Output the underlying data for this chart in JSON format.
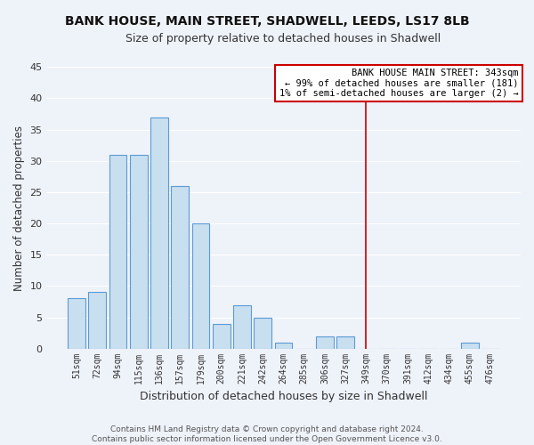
{
  "title": "BANK HOUSE, MAIN STREET, SHADWELL, LEEDS, LS17 8LB",
  "subtitle": "Size of property relative to detached houses in Shadwell",
  "xlabel": "Distribution of detached houses by size in Shadwell",
  "ylabel": "Number of detached properties",
  "bar_labels": [
    "51sqm",
    "72sqm",
    "94sqm",
    "115sqm",
    "136sqm",
    "157sqm",
    "179sqm",
    "200sqm",
    "221sqm",
    "242sqm",
    "264sqm",
    "285sqm",
    "306sqm",
    "327sqm",
    "349sqm",
    "370sqm",
    "391sqm",
    "412sqm",
    "434sqm",
    "455sqm",
    "476sqm"
  ],
  "bar_heights": [
    8,
    9,
    31,
    31,
    37,
    26,
    20,
    4,
    7,
    5,
    1,
    0,
    2,
    2,
    0,
    0,
    0,
    0,
    0,
    1,
    0
  ],
  "bar_color": "#c8dff0",
  "bar_edge_color": "#5b9bd5",
  "ylim": [
    0,
    45
  ],
  "yticks": [
    0,
    5,
    10,
    15,
    20,
    25,
    30,
    35,
    40,
    45
  ],
  "vline_x_index": 14,
  "vline_color": "#cc0000",
  "annotation_title": "BANK HOUSE MAIN STREET: 343sqm",
  "annotation_line1": "← 99% of detached houses are smaller (181)",
  "annotation_line2": "1% of semi-detached houses are larger (2) →",
  "footer1": "Contains HM Land Registry data © Crown copyright and database right 2024.",
  "footer2": "Contains public sector information licensed under the Open Government Licence v3.0.",
  "background_color": "#eef2f9",
  "grid_color": "#ffffff",
  "title_fontsize": 10,
  "subtitle_fontsize": 9
}
